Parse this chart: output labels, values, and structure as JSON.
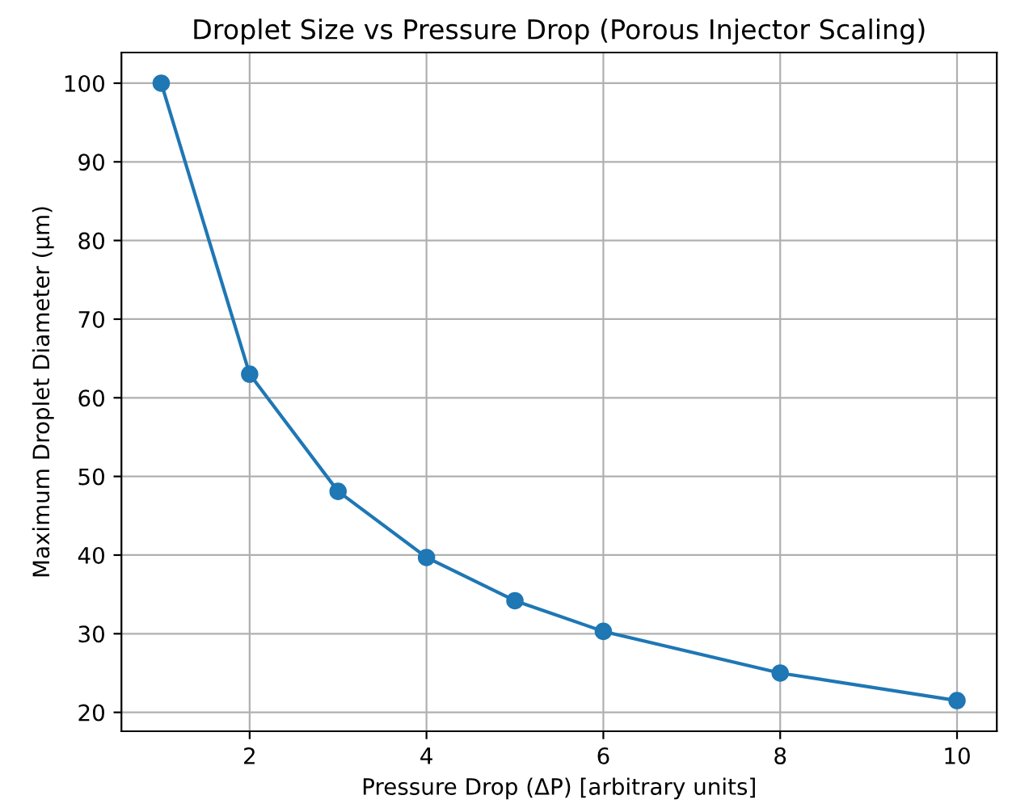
{
  "chart_data": {
    "type": "line",
    "title": "Droplet Size vs Pressure Drop (Porous Injector Scaling)",
    "xlabel": "Pressure Drop (ΔP) [arbitrary units]",
    "ylabel": "Maximum Droplet Diameter (µm)",
    "x": [
      1,
      2,
      3,
      4,
      5,
      6,
      8,
      10
    ],
    "series": [
      {
        "color": "#1f77b4",
        "values": [
          100,
          63,
          48.1,
          39.7,
          34.2,
          30.3,
          25,
          21.5
        ]
      }
    ],
    "xlim": [
      0.55,
      10.45
    ],
    "ylim": [
      17.6,
      103.9
    ],
    "xticks": [
      2,
      4,
      6,
      8,
      10
    ],
    "yticks": [
      20,
      30,
      40,
      50,
      60,
      70,
      80,
      90,
      100
    ],
    "grid": true,
    "marker": "circle",
    "line_style": "solid"
  }
}
